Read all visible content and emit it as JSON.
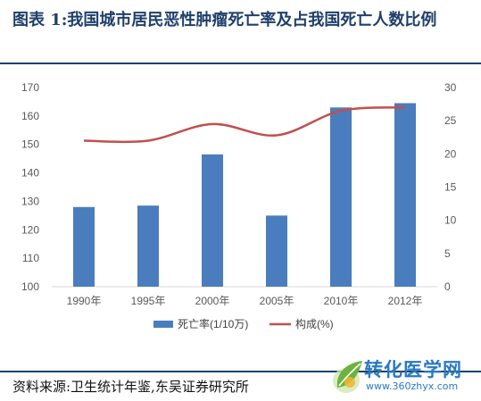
{
  "figure": {
    "title": "图表 1:我国城市居民恶性肿瘤死亡率及占我国死亡人数比例",
    "source": "资料来源:卫生统计年鉴,东吴证券研究所"
  },
  "watermark": {
    "name": "转化医学网",
    "url": "www.360zhyx.com",
    "logo_icon": "leaf-logo-icon"
  },
  "chart_data": {
    "type": "bar",
    "categories": [
      "1990年",
      "1995年",
      "2000年",
      "2005年",
      "2010年",
      "2012年"
    ],
    "series": [
      {
        "name": "死亡率(1/10万)",
        "type": "bar",
        "axis": "left",
        "color": "#4a7dbd",
        "values": [
          128,
          128.5,
          146.5,
          125,
          163,
          164.5
        ]
      },
      {
        "name": "构成(%)",
        "type": "line",
        "axis": "right",
        "color": "#c0504d",
        "values": [
          22,
          22,
          24.5,
          22.8,
          26.5,
          27
        ]
      }
    ],
    "y_left": {
      "ticks": [
        100,
        110,
        120,
        130,
        140,
        150,
        160,
        170
      ],
      "range": [
        100,
        170
      ]
    },
    "y_right": {
      "ticks": [
        0,
        5,
        10,
        15,
        20,
        25,
        30
      ],
      "range": [
        0,
        30
      ]
    },
    "grid": false,
    "legend_position": "bottom"
  }
}
